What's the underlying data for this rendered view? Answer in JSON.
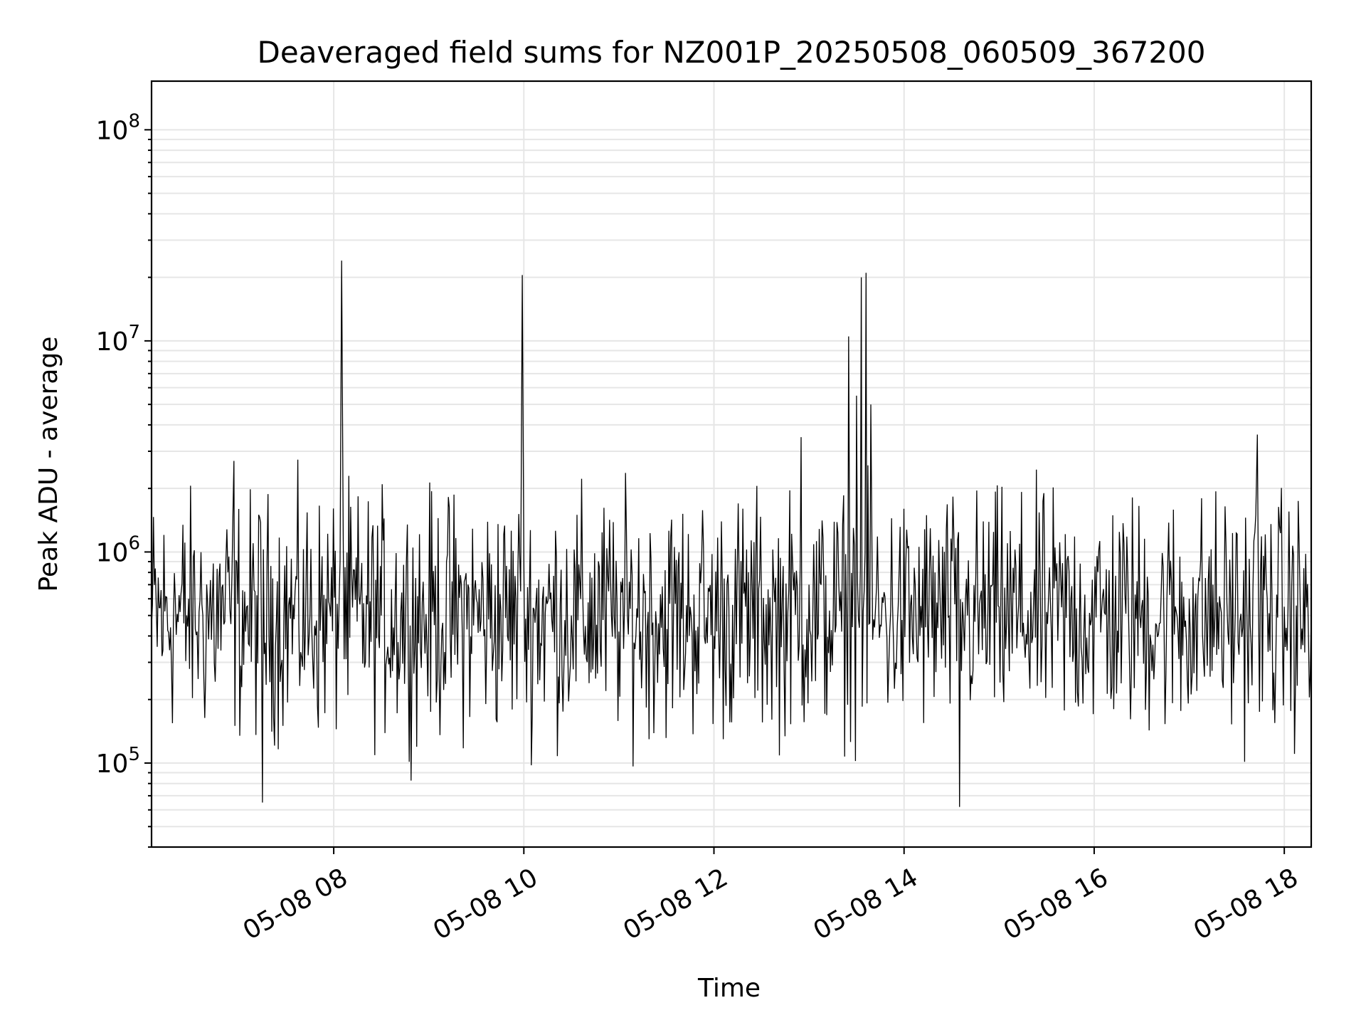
{
  "chart_data": {
    "type": "line",
    "title": "Deaveraged field sums for NZ001P_20250508_060509_367200",
    "xlabel": "Time",
    "ylabel": "Peak ADU - average",
    "yscale": "log",
    "ylim": [
      40000,
      170000000
    ],
    "xlim": [
      "2025-05-08 06:05",
      "2025-05-08 18:17"
    ],
    "grid": true,
    "line_color": "#000000",
    "x_ticks": [
      {
        "value": "2025-05-08 08:00",
        "label": "05-08 08"
      },
      {
        "value": "2025-05-08 10:00",
        "label": "05-08 10"
      },
      {
        "value": "2025-05-08 12:00",
        "label": "05-08 12"
      },
      {
        "value": "2025-05-08 14:00",
        "label": "05-08 14"
      },
      {
        "value": "2025-05-08 16:00",
        "label": "05-08 16"
      },
      {
        "value": "2025-05-08 18:00",
        "label": "05-08 18"
      }
    ],
    "y_ticks": [
      {
        "value": 100000,
        "base": "10",
        "exp": "5"
      },
      {
        "value": 1000000,
        "base": "10",
        "exp": "6"
      },
      {
        "value": 10000000,
        "base": "10",
        "exp": "7"
      },
      {
        "value": 100000000,
        "base": "10",
        "exp": "8"
      }
    ],
    "series": [
      {
        "baseline": 500000,
        "x": [
          "2025-05-08 06:05",
          "2025-05-08 06:20",
          "2025-05-08 06:35",
          "2025-05-08 06:50",
          "2025-05-08 06:57",
          "2025-05-08 07:05",
          "2025-05-08 07:15",
          "2025-05-08 07:35",
          "2025-05-08 07:55",
          "2025-05-08 08:04",
          "2025-05-08 08:05",
          "2025-05-08 08:06",
          "2025-05-08 08:30",
          "2025-05-08 09:00",
          "2025-05-08 09:30",
          "2025-05-08 09:58",
          "2025-05-08 09:59",
          "2025-05-08 10:00",
          "2025-05-08 10:30",
          "2025-05-08 11:00",
          "2025-05-08 11:28",
          "2025-05-08 11:45",
          "2025-05-08 12:00",
          "2025-05-08 12:30",
          "2025-05-08 12:55",
          "2025-05-08 13:00",
          "2025-05-08 13:20",
          "2025-05-08 13:25",
          "2025-05-08 13:28",
          "2025-05-08 13:30",
          "2025-05-08 13:33",
          "2025-05-08 13:36",
          "2025-05-08 13:39",
          "2025-05-08 13:45",
          "2025-05-08 14:10",
          "2025-05-08 14:35",
          "2025-05-08 14:40",
          "2025-05-08 15:00",
          "2025-05-08 15:30",
          "2025-05-08 16:00",
          "2025-05-08 16:30",
          "2025-05-08 17:00",
          "2025-05-08 17:15",
          "2025-05-08 17:42",
          "2025-05-08 17:43",
          "2025-05-08 17:45",
          "2025-05-08 18:00",
          "2025-05-08 18:17"
        ],
        "y": [
          450000,
          600000,
          520000,
          700000,
          2700000,
          550000,
          65000,
          480000,
          600000,
          900000,
          24000000,
          1200000,
          500000,
          550000,
          600000,
          650000,
          20500000,
          900000,
          500000,
          420000,
          350000,
          550000,
          400000,
          600000,
          3500000,
          700000,
          650000,
          10500000,
          1300000,
          5500000,
          20000000,
          21000000,
          5000000,
          450000,
          400000,
          62000,
          500000,
          550000,
          520000,
          480000,
          550000,
          600000,
          700000,
          1500000,
          3600000,
          800000,
          550000,
          500000
        ]
      }
    ]
  }
}
